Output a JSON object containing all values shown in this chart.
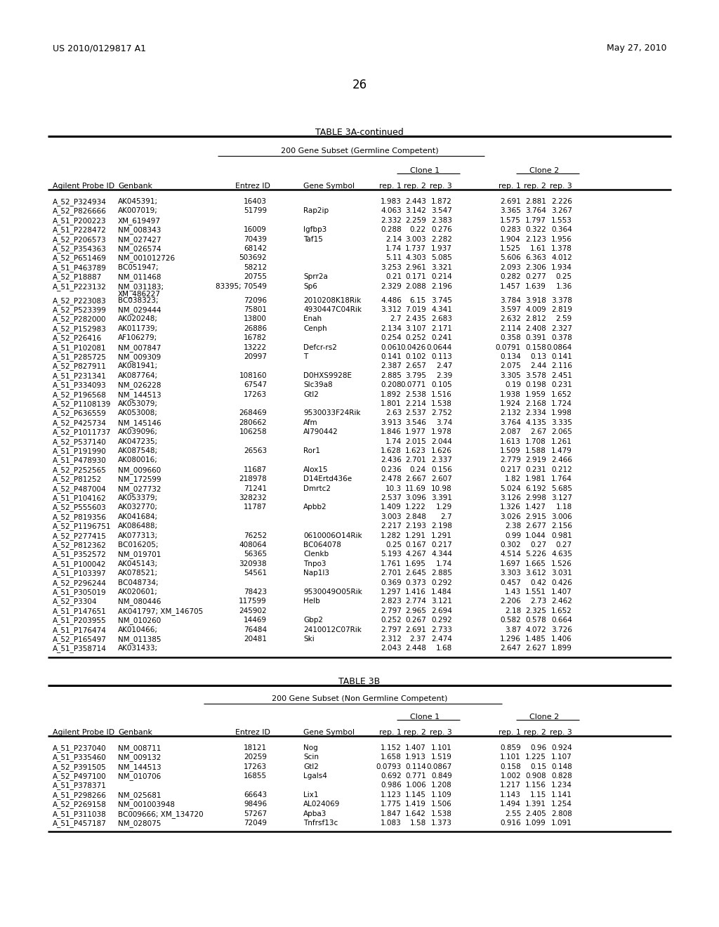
{
  "header_left": "US 2010/0129817 A1",
  "header_right": "May 27, 2010",
  "page_number": "26",
  "table3a_title": "TABLE 3A-continued",
  "table3a_subtitle": "200 Gene Subset (Germline Competent)",
  "table3a_clone1": "Clone 1",
  "table3a_clone2": "Clone 2",
  "table3a_col_labels": [
    "Agilent Probe ID",
    "Genbank",
    "Entrez ID",
    "Gene Symbol",
    "rep. 1",
    "rep. 2",
    "rep. 3",
    "rep. 1",
    "rep. 2",
    "rep. 3"
  ],
  "table3a_rows": [
    [
      "A_52_P324934",
      "AK045391;",
      "16403",
      "",
      "1.983",
      "2.443",
      "1.872",
      "2.691",
      "2.881",
      "2.226"
    ],
    [
      "A_52_P826666",
      "AK007019;",
      "51799",
      "Rap2ip",
      "4.063",
      "3.142",
      "3.547",
      "3.365",
      "3.764",
      "3.267"
    ],
    [
      "A_51_P200223",
      "XM_619497",
      "",
      "",
      "2.332",
      "2.259",
      "2.383",
      "1.575",
      "1.797",
      "1.553"
    ],
    [
      "A_51_P228472",
      "NM_008343",
      "16009",
      "Igfbp3",
      "0.288",
      "0.22",
      "0.276",
      "0.283",
      "0.322",
      "0.364"
    ],
    [
      "A_52_P206573",
      "NM_027427",
      "70439",
      "Taf15",
      "2.14",
      "3.003",
      "2.282",
      "1.904",
      "2.123",
      "1.956"
    ],
    [
      "A_52_P354363",
      "NM_026574",
      "68142",
      "",
      "1.74",
      "1.737",
      "1.937",
      "1.525",
      "1.61",
      "1.378"
    ],
    [
      "A_52_P651469",
      "NM_001012726",
      "503692",
      "",
      "5.11",
      "4.303",
      "5.085",
      "5.606",
      "6.363",
      "4.012"
    ],
    [
      "A_51_P463789",
      "BC051947;",
      "58212",
      "",
      "3.253",
      "2.961",
      "3.321",
      "2.093",
      "2.306",
      "1.934"
    ],
    [
      "A_52_P18887",
      "NM_011468",
      "20755",
      "Sprr2a",
      "0.21",
      "0.171",
      "0.214",
      "0.282",
      "0.277",
      "0.25"
    ],
    [
      "A_51_P223132",
      "NM_031183;|XM_486227",
      "83395; 70549",
      "Sp6",
      "2.329",
      "2.088",
      "2.196",
      "1.457",
      "1.639",
      "1.36"
    ],
    [
      "A_52_P223083",
      "BC038323;",
      "72096",
      "2010208K18Rik",
      "4.486",
      "6.15",
      "3.745",
      "3.784",
      "3.918",
      "3.378"
    ],
    [
      "A_52_P523399",
      "NM_029444",
      "75801",
      "4930447C04Rik",
      "3.312",
      "7.019",
      "4.341",
      "3.597",
      "4.009",
      "2.819"
    ],
    [
      "A_52_P282000",
      "AK020248;",
      "13800",
      "Enah",
      "2.7",
      "2.435",
      "2.683",
      "2.632",
      "2.812",
      "2.59"
    ],
    [
      "A_52_P152983",
      "AK011739;",
      "26886",
      "Cenph",
      "2.134",
      "3.107",
      "2.171",
      "2.114",
      "2.408",
      "2.327"
    ],
    [
      "A_52_P26416",
      "AF106279;",
      "16782",
      "",
      "0.254",
      "0.252",
      "0.241",
      "0.358",
      "0.391",
      "0.378"
    ],
    [
      "A_51_P102081",
      "NM_007847",
      "13222",
      "Defcr-rs2",
      "0.061",
      "0.0426",
      "0.0644",
      "0.0791",
      "0.158",
      "0.0864"
    ],
    [
      "A_51_P285725",
      "NM_009309",
      "20997",
      "T",
      "0.141",
      "0.102",
      "0.113",
      "0.134",
      "0.13",
      "0.141"
    ],
    [
      "A_52_P827911",
      "AK081941;",
      "",
      "",
      "2.387",
      "2.657",
      "2.47",
      "2.075",
      "2.44",
      "2.116"
    ],
    [
      "A_51_P231341",
      "AK087764;",
      "108160",
      "D0HXS9928E",
      "2.885",
      "3.795",
      "2.39",
      "3.305",
      "3.578",
      "2.451"
    ],
    [
      "A_51_P334093",
      "NM_026228",
      "67547",
      "Slc39a8",
      "0.208",
      "0.0771",
      "0.105",
      "0.19",
      "0.198",
      "0.231"
    ],
    [
      "A_52_P196568",
      "NM_144513",
      "17263",
      "Gtl2",
      "1.892",
      "2.538",
      "1.516",
      "1.938",
      "1.959",
      "1.652"
    ],
    [
      "A_52_P1108139",
      "AK053079;",
      "",
      "",
      "1.801",
      "2.214",
      "1.538",
      "1.924",
      "2.168",
      "1.724"
    ],
    [
      "A_52_P636559",
      "AK053008;",
      "268469",
      "9530033F24Rik",
      "2.63",
      "2.537",
      "2.752",
      "2.132",
      "2.334",
      "1.998"
    ],
    [
      "A_52_P425734",
      "NM_145146",
      "280662",
      "Afm",
      "3.913",
      "3.546",
      "3.74",
      "3.764",
      "4.135",
      "3.335"
    ],
    [
      "A_52_P1011737",
      "AK039096;",
      "106258",
      "AI790442",
      "1.846",
      "1.977",
      "1.978",
      "2.087",
      "2.67",
      "2.065"
    ],
    [
      "A_52_P537140",
      "AK047235;",
      "",
      "",
      "1.74",
      "2.015",
      "2.044",
      "1.613",
      "1.708",
      "1.261"
    ],
    [
      "A_51_P191990",
      "AK087548;",
      "26563",
      "Ror1",
      "1.628",
      "1.623",
      "1.626",
      "1.509",
      "1.588",
      "1.479"
    ],
    [
      "A_51_P478930",
      "AK080016;",
      "",
      "",
      "2.436",
      "2.701",
      "2.337",
      "2.779",
      "2.919",
      "2.466"
    ],
    [
      "A_52_P252565",
      "NM_009660",
      "11687",
      "Alox15",
      "0.236",
      "0.24",
      "0.156",
      "0.217",
      "0.231",
      "0.212"
    ],
    [
      "A_52_P81252",
      "NM_172599",
      "218978",
      "D14Ertd436e",
      "2.478",
      "2.667",
      "2.607",
      "1.82",
      "1.981",
      "1.764"
    ],
    [
      "A_52_P487004",
      "NM_027732",
      "71241",
      "Dmrtc2",
      "10.3",
      "11.69",
      "10.98",
      "5.024",
      "6.192",
      "5.685"
    ],
    [
      "A_51_P104162",
      "AK053379;",
      "328232",
      "",
      "2.537",
      "3.096",
      "3.391",
      "3.126",
      "2.998",
      "3.127"
    ],
    [
      "A_52_P555603",
      "AK032770;",
      "11787",
      "Apbb2",
      "1.409",
      "1.222",
      "1.29",
      "1.326",
      "1.427",
      "1.18"
    ],
    [
      "A_52_P819356",
      "AK041684;",
      "",
      "",
      "3.003",
      "2.848",
      "2.7",
      "3.026",
      "2.915",
      "3.006"
    ],
    [
      "A_52_P1196751",
      "AK086488;",
      "",
      "",
      "2.217",
      "2.193",
      "2.198",
      "2.38",
      "2.677",
      "2.156"
    ],
    [
      "A_52_P277415",
      "AK077313;",
      "76252",
      "0610006O14Rik",
      "1.282",
      "1.291",
      "1.291",
      "0.99",
      "1.044",
      "0.981"
    ],
    [
      "A_52_P812362",
      "BC016205;",
      "408064",
      "BC064078",
      "0.25",
      "0.167",
      "0.217",
      "0.302",
      "0.27",
      "0.27"
    ],
    [
      "A_51_P352572",
      "NM_019701",
      "56365",
      "Clenkb",
      "5.193",
      "4.267",
      "4.344",
      "4.514",
      "5.226",
      "4.635"
    ],
    [
      "A_51_P100042",
      "AK045143;",
      "320938",
      "Tnpo3",
      "1.761",
      "1.695",
      "1.74",
      "1.697",
      "1.665",
      "1.526"
    ],
    [
      "A_51_P103397",
      "AK078521;",
      "54561",
      "Nap1l3",
      "2.701",
      "2.645",
      "2.885",
      "3.303",
      "3.612",
      "3.031"
    ],
    [
      "A_52_P296244",
      "BC048734;",
      "",
      "",
      "0.369",
      "0.373",
      "0.292",
      "0.457",
      "0.42",
      "0.426"
    ],
    [
      "A_51_P305019",
      "AK020601;",
      "78423",
      "9530049O05Rik",
      "1.297",
      "1.416",
      "1.484",
      "1.43",
      "1.551",
      "1.407"
    ],
    [
      "A_52_P3304",
      "NM_080446",
      "117599",
      "Helb",
      "2.823",
      "2.774",
      "3.121",
      "2.206",
      "2.73",
      "2.462"
    ],
    [
      "A_51_P147651",
      "AK041797; XM_146705",
      "245902",
      "",
      "2.797",
      "2.965",
      "2.694",
      "2.18",
      "2.325",
      "1.652"
    ],
    [
      "A_51_P203955",
      "NM_010260",
      "14469",
      "Gbp2",
      "0.252",
      "0.267",
      "0.292",
      "0.582",
      "0.578",
      "0.664"
    ],
    [
      "A_51_P176474",
      "AK010466;",
      "76484",
      "2410012C07Rik",
      "2.797",
      "2.691",
      "2.733",
      "3.87",
      "4.072",
      "3.726"
    ],
    [
      "A_52_P165497",
      "NM_011385",
      "20481",
      "Ski",
      "2.312",
      "2.37",
      "2.474",
      "1.296",
      "1.485",
      "1.406"
    ],
    [
      "A_51_P358714",
      "AK031433;",
      "",
      "",
      "2.043",
      "2.448",
      "1.68",
      "2.647",
      "2.627",
      "1.899"
    ]
  ],
  "table3b_title": "TABLE 3B",
  "table3b_subtitle": "200 Gene Subset (Non Germline Competent)",
  "table3b_clone1": "Clone 1",
  "table3b_clone2": "Clone 2",
  "table3b_col_labels": [
    "Agilent Probe ID",
    "Genbank",
    "Entrez ID",
    "Gene Symbol",
    "rep. 1",
    "rep. 2",
    "rep. 3",
    "rep. 1",
    "rep. 2",
    "rep. 3"
  ],
  "table3b_rows": [
    [
      "A_51_P237040",
      "NM_008711",
      "18121",
      "Nog",
      "1.152",
      "1.407",
      "1.101",
      "0.859",
      "0.96",
      "0.924"
    ],
    [
      "A_51_P335460",
      "NM_009132",
      "20259",
      "Scin",
      "1.658",
      "1.913",
      "1.519",
      "1.101",
      "1.225",
      "1.107"
    ],
    [
      "A_52_P391505",
      "NM_144513",
      "17263",
      "Gtl2",
      "0.0793",
      "0.114",
      "0.0867",
      "0.158",
      "0.15",
      "0.148"
    ],
    [
      "A_52_P497100",
      "NM_010706",
      "16855",
      "Lgals4",
      "0.692",
      "0.771",
      "0.849",
      "1.002",
      "0.908",
      "0.828"
    ],
    [
      "A_51_P378371",
      "",
      "",
      "",
      "0.986",
      "1.006",
      "1.208",
      "1.217",
      "1.156",
      "1.234"
    ],
    [
      "A_51_P298266",
      "NM_025681",
      "66643",
      "Lix1",
      "1.123",
      "1.145",
      "1.109",
      "1.143",
      "1.15",
      "1.141"
    ],
    [
      "A_52_P269158",
      "NM_001003948",
      "98496",
      "AL024069",
      "1.775",
      "1.419",
      "1.506",
      "1.494",
      "1.391",
      "1.254"
    ],
    [
      "A_51_P311038",
      "BC009666; XM_134720",
      "57267",
      "Apba3",
      "1.847",
      "1.642",
      "1.538",
      "2.55",
      "2.405",
      "2.808"
    ],
    [
      "A_51_P457187",
      "NM_028075",
      "72049",
      "Tnfrsf13c",
      "1.083",
      "1.58",
      "1.373",
      "0.916",
      "1.099",
      "1.091"
    ]
  ]
}
